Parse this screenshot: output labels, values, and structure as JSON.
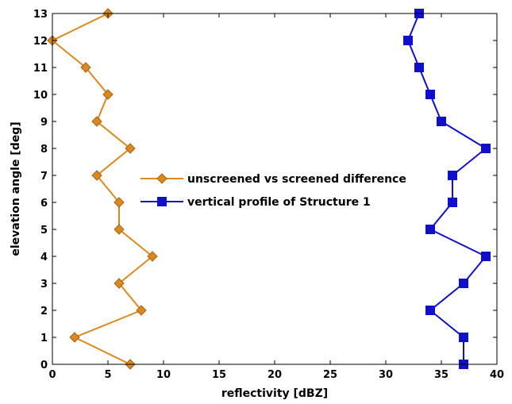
{
  "chart_data": {
    "type": "line",
    "xlabel": "reflectivity [dBZ]",
    "ylabel": "elevation angle [deg]",
    "xlim": [
      0,
      40
    ],
    "ylim": [
      0,
      13
    ],
    "xticks": [
      "0",
      "5",
      "10",
      "15",
      "20",
      "25",
      "30",
      "35",
      "40"
    ],
    "yticks": [
      "0",
      "1",
      "2",
      "3",
      "4",
      "5",
      "6",
      "7",
      "8",
      "9",
      "10",
      "11",
      "12",
      "13"
    ],
    "grid": false,
    "legend_position": "center",
    "series": [
      {
        "name": "unscreened vs screened difference",
        "color": "#D98A1E",
        "marker": "diamond",
        "x": [
          7,
          2,
          8,
          6,
          9,
          6,
          6,
          4,
          7,
          4,
          5,
          3,
          0,
          5
        ],
        "y": [
          0,
          1,
          2,
          3,
          4,
          5,
          6,
          7,
          8,
          9,
          10,
          11,
          12,
          13
        ]
      },
      {
        "name": "vertical profile of Structure 1",
        "color": "#1010C8",
        "marker": "square",
        "x": [
          37,
          37,
          34,
          37,
          39,
          34,
          36,
          36,
          39,
          35,
          34,
          33,
          32,
          33
        ],
        "y": [
          0,
          1,
          2,
          3,
          4,
          5,
          6,
          7,
          8,
          9,
          10,
          11,
          12,
          13
        ]
      }
    ]
  }
}
